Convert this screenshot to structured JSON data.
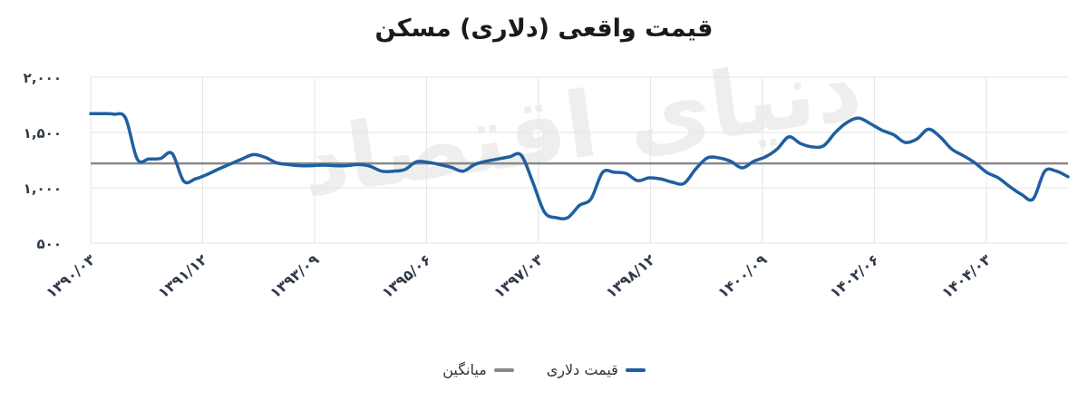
{
  "chart_data": {
    "type": "line",
    "title": "قیمت واقعی (دلاری) مسکن",
    "watermark": "دنیای اقتصاد",
    "y_ticks": [
      "۲,۰۰۰",
      "۱,۵۰۰",
      "۱,۰۰۰",
      "۵۰۰"
    ],
    "y_tick_values": [
      2000,
      1500,
      1000,
      500
    ],
    "ylim": [
      500,
      2000
    ],
    "x_ticks": [
      "۱۳۹۰/۰۳",
      "۱۳۹۱/۱۲",
      "۱۳۹۳/۰۹",
      "۱۳۹۵/۰۶",
      "۱۳۹۷/۰۳",
      "۱۳۹۸/۱۲",
      "۱۴۰۰/۰۹",
      "۱۴۰۲/۰۶",
      "۱۴۰۴/۰۳"
    ],
    "grid": true,
    "legend_position": "bottom",
    "series": [
      {
        "name": "قیمت دلاری",
        "color": "#1f5fa0",
        "values": [
          1670,
          1670,
          1665,
          1630,
          1260,
          1260,
          1265,
          1310,
          1060,
          1080,
          1120,
          1170,
          1215,
          1260,
          1300,
          1275,
          1225,
          1210,
          1200,
          1200,
          1205,
          1200,
          1200,
          1210,
          1195,
          1150,
          1150,
          1165,
          1235,
          1230,
          1210,
          1185,
          1150,
          1210,
          1240,
          1260,
          1280,
          1295,
          1050,
          780,
          730,
          730,
          840,
          900,
          1140,
          1140,
          1130,
          1065,
          1090,
          1080,
          1050,
          1040,
          1170,
          1270,
          1270,
          1240,
          1180,
          1240,
          1280,
          1350,
          1460,
          1400,
          1370,
          1380,
          1500,
          1590,
          1630,
          1580,
          1520,
          1480,
          1410,
          1440,
          1530,
          1460,
          1350,
          1290,
          1225,
          1140,
          1090,
          1010,
          940,
          900,
          1150,
          1150,
          1100
        ]
      },
      {
        "name": "میانگین",
        "color": "#888888",
        "values": [
          1220
        ]
      }
    ]
  },
  "legend": [
    {
      "label": "قیمت دلاری",
      "color": "#1f5fa0"
    },
    {
      "label": "میانگین",
      "color": "#888888"
    }
  ]
}
